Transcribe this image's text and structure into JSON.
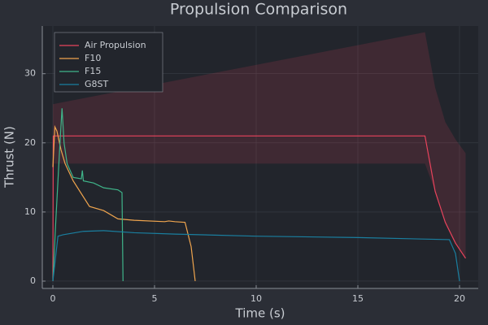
{
  "chart_data": {
    "type": "line",
    "title": "Propulsion Comparison",
    "x_label": "Time (s)",
    "y_label": "Thrust (N)",
    "xlim": [
      -0.52,
      20.92
    ],
    "ylim": [
      -1.06,
      36.9
    ],
    "xticks": [
      0,
      5,
      10,
      15,
      20
    ],
    "yticks": [
      0,
      10,
      20,
      30
    ],
    "grid": true,
    "legend": "top-left",
    "series": [
      {
        "name": "Air Propulsion",
        "color": "#e8435c",
        "x": [
          0,
          0.02,
          18.3,
          18.8,
          19.3,
          19.8,
          20.3
        ],
        "values": [
          0,
          21,
          21,
          13,
          8.5,
          5.5,
          3.3
        ],
        "band_upper": [
          25.6,
          25.6,
          36,
          28,
          23,
          20.5,
          18.5
        ],
        "band_lower": [
          17,
          17,
          17,
          13,
          8.5,
          5.5,
          3.3
        ]
      },
      {
        "name": "F10",
        "color": "#f0a54e",
        "x": [
          0,
          0.1,
          0.2,
          0.4,
          0.6,
          1,
          1.8,
          2.5,
          3.2,
          4,
          5.5,
          5.7,
          6,
          6.5,
          6.8,
          7
        ],
        "values": [
          16.5,
          22.3,
          21.7,
          19,
          17,
          14.5,
          10.8,
          10.2,
          9,
          8.8,
          8.6,
          8.7,
          8.6,
          8.5,
          5,
          0
        ]
      },
      {
        "name": "F15",
        "color": "#3fb58a",
        "x": [
          0,
          0.15,
          0.35,
          0.45,
          0.55,
          0.7,
          1,
          1.4,
          1.45,
          1.5,
          2,
          2.5,
          3.2,
          3.4,
          3.45
        ],
        "values": [
          0,
          9,
          20,
          25,
          20,
          17,
          15,
          14.8,
          16,
          14.5,
          14.2,
          13.5,
          13.2,
          12.8,
          0
        ]
      },
      {
        "name": "G8ST",
        "color": "#1a7fa0",
        "x": [
          0,
          0.25,
          0.5,
          1.5,
          2.5,
          4,
          6,
          10,
          15,
          19.5,
          19.8,
          20
        ],
        "values": [
          0,
          6.5,
          6.7,
          7.2,
          7.3,
          7.0,
          6.8,
          6.5,
          6.3,
          6.0,
          4,
          0
        ]
      }
    ]
  }
}
